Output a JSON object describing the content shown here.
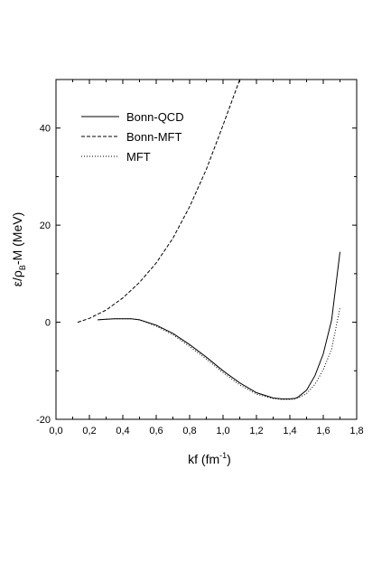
{
  "chart_data": {
    "type": "line",
    "xlabel": {
      "main": "kf (fm",
      "sup": "-1",
      "close": ")"
    },
    "ylabel": {
      "pre": "ε/ρ",
      "sub": "B",
      "post": "-M (MeV)"
    },
    "xlim": [
      0.0,
      1.8
    ],
    "ylim": [
      -20,
      50
    ],
    "xticks": [
      0.0,
      0.2,
      0.4,
      0.6,
      0.8,
      1.0,
      1.2,
      1.4,
      1.6,
      1.8
    ],
    "xtick_labels": [
      "0,0",
      "0,2",
      "0,4",
      "0,6",
      "0,8",
      "1,0",
      "1,2",
      "1,4",
      "1,6",
      "1,8"
    ],
    "yticks": [
      -20,
      0,
      20,
      40
    ],
    "ytick_labels": [
      "-20",
      "0",
      "20",
      "40"
    ],
    "grid": false,
    "legend_position": "top-left",
    "series": [
      {
        "name": "Bonn-QCD",
        "style": "solid",
        "x": [
          0.25,
          0.3,
          0.35,
          0.4,
          0.45,
          0.5,
          0.6,
          0.7,
          0.8,
          0.9,
          1.0,
          1.1,
          1.2,
          1.3,
          1.35,
          1.4,
          1.43,
          1.45,
          1.5,
          1.55,
          1.6,
          1.65,
          1.7
        ],
        "y": [
          0.5,
          0.6,
          0.7,
          0.7,
          0.7,
          0.5,
          -0.6,
          -2.3,
          -4.6,
          -7.2,
          -10.0,
          -12.5,
          -14.5,
          -15.6,
          -15.8,
          -15.8,
          -15.7,
          -15.4,
          -14.0,
          -11.0,
          -6.5,
          0.5,
          14.5
        ]
      },
      {
        "name": "Bonn-MFT",
        "style": "dashed",
        "x": [
          0.13,
          0.2,
          0.3,
          0.4,
          0.5,
          0.6,
          0.7,
          0.8,
          0.9,
          1.0,
          1.05,
          1.1
        ],
        "y": [
          0.0,
          0.8,
          2.5,
          5.0,
          8.2,
          12.2,
          17.3,
          23.8,
          31.5,
          40.6,
          45.3,
          50.0
        ]
      },
      {
        "name": "MFT",
        "style": "dotted",
        "x": [
          0.25,
          0.3,
          0.35,
          0.4,
          0.45,
          0.5,
          0.6,
          0.7,
          0.8,
          0.9,
          1.0,
          1.1,
          1.2,
          1.3,
          1.35,
          1.4,
          1.43,
          1.45,
          1.5,
          1.55,
          1.6,
          1.65,
          1.7
        ],
        "y": [
          0.5,
          0.6,
          0.7,
          0.7,
          0.7,
          0.5,
          -0.8,
          -2.6,
          -5.0,
          -7.6,
          -10.4,
          -12.9,
          -14.8,
          -15.7,
          -15.9,
          -15.9,
          -15.8,
          -15.6,
          -14.7,
          -12.8,
          -9.8,
          -5.5,
          3.0
        ]
      }
    ]
  }
}
